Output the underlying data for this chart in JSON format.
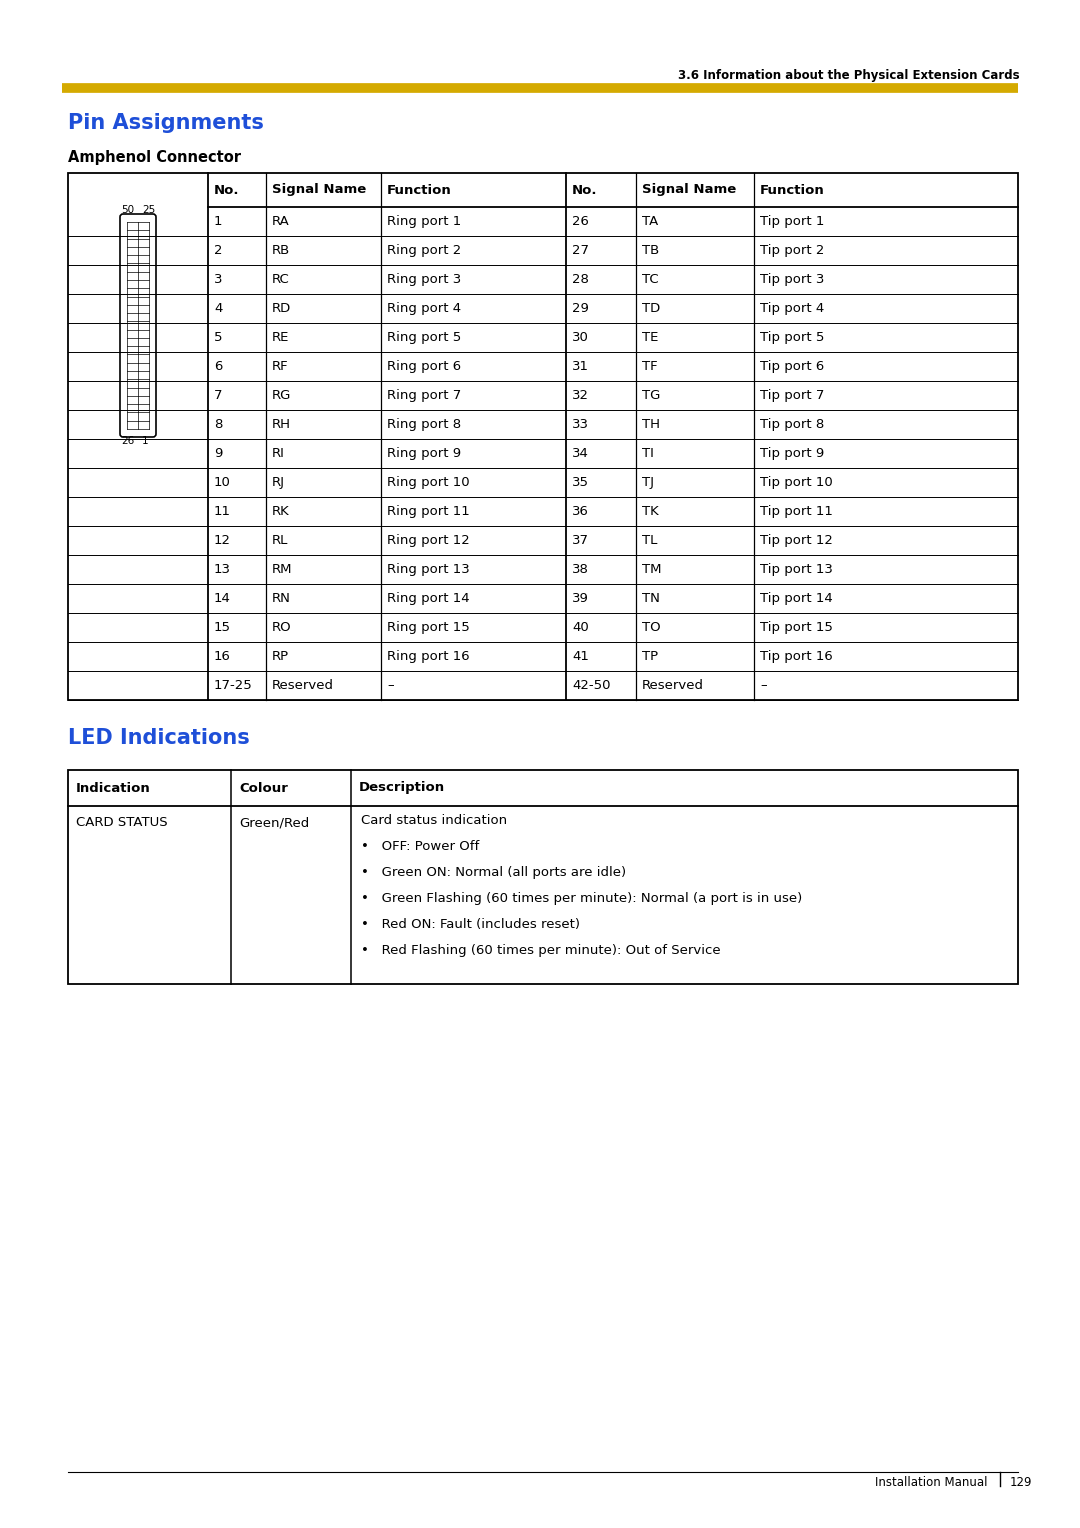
{
  "page_header": "3.6 Information about the Physical Extension Cards",
  "section_title": "Pin Assignments",
  "subsection_title": "Amphenol Connector",
  "section2_title": "LED Indications",
  "yellow_line_color": "#D4AA00",
  "title_color": "#1E4FD8",
  "pin_table_headers": [
    "No.",
    "Signal Name",
    "Function",
    "No.",
    "Signal Name",
    "Function"
  ],
  "pin_rows": [
    [
      "1",
      "RA",
      "Ring port 1",
      "26",
      "TA",
      "Tip port 1"
    ],
    [
      "2",
      "RB",
      "Ring port 2",
      "27",
      "TB",
      "Tip port 2"
    ],
    [
      "3",
      "RC",
      "Ring port 3",
      "28",
      "TC",
      "Tip port 3"
    ],
    [
      "4",
      "RD",
      "Ring port 4",
      "29",
      "TD",
      "Tip port 4"
    ],
    [
      "5",
      "RE",
      "Ring port 5",
      "30",
      "TE",
      "Tip port 5"
    ],
    [
      "6",
      "RF",
      "Ring port 6",
      "31",
      "TF",
      "Tip port 6"
    ],
    [
      "7",
      "RG",
      "Ring port 7",
      "32",
      "TG",
      "Tip port 7"
    ],
    [
      "8",
      "RH",
      "Ring port 8",
      "33",
      "TH",
      "Tip port 8"
    ],
    [
      "9",
      "RI",
      "Ring port 9",
      "34",
      "TI",
      "Tip port 9"
    ],
    [
      "10",
      "RJ",
      "Ring port 10",
      "35",
      "TJ",
      "Tip port 10"
    ],
    [
      "11",
      "RK",
      "Ring port 11",
      "36",
      "TK",
      "Tip port 11"
    ],
    [
      "12",
      "RL",
      "Ring port 12",
      "37",
      "TL",
      "Tip port 12"
    ],
    [
      "13",
      "RM",
      "Ring port 13",
      "38",
      "TM",
      "Tip port 13"
    ],
    [
      "14",
      "RN",
      "Ring port 14",
      "39",
      "TN",
      "Tip port 14"
    ],
    [
      "15",
      "RO",
      "Ring port 15",
      "40",
      "TO",
      "Tip port 15"
    ],
    [
      "16",
      "RP",
      "Ring port 16",
      "41",
      "TP",
      "Tip port 16"
    ],
    [
      "17-25",
      "Reserved",
      "–",
      "42-50",
      "Reserved",
      "–"
    ]
  ],
  "led_headers": [
    "Indication",
    "Colour",
    "Description"
  ],
  "led_desc_lines": [
    "Card status indication",
    "•   OFF: Power Off",
    "•   Green ON: Normal (all ports are idle)",
    "•   Green Flashing (60 times per minute): Normal (a port is in use)",
    "•   Red ON: Fault (includes reset)",
    "•   Red Flashing (60 times per minute): Out of Service"
  ],
  "footer_text": "Installation Manual",
  "footer_page": "129",
  "background_color": "#FFFFFF"
}
